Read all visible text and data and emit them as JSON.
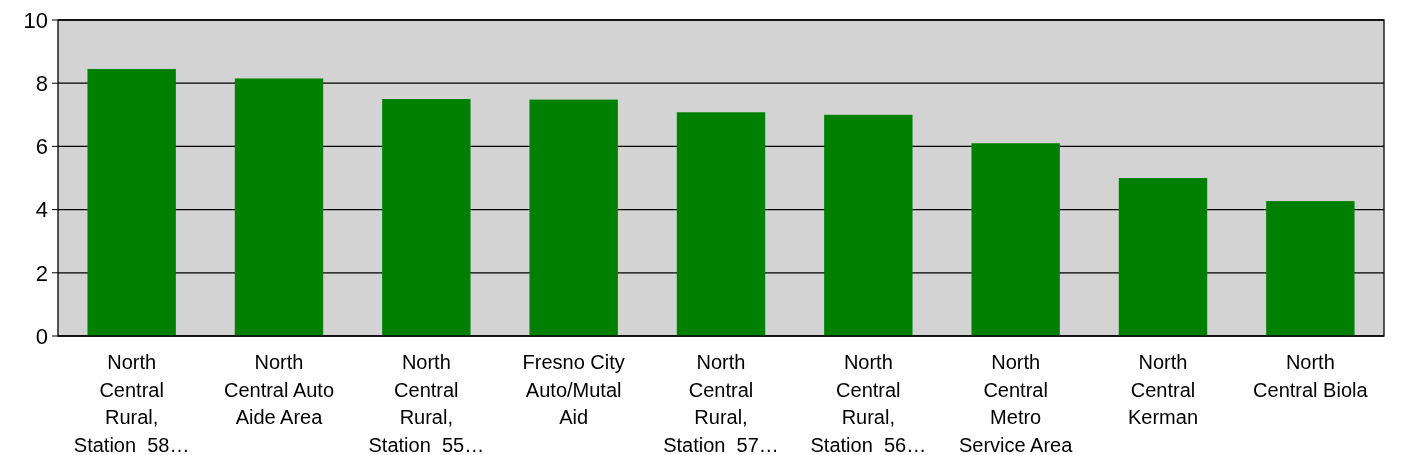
{
  "chart_data": {
    "type": "bar",
    "categories": [
      "North\nCentral\nRural,\nStation  58…",
      "North\nCentral Auto\nAide Area",
      "North\nCentral\nRural,\nStation  55…",
      "Fresno City\nAuto/Mutal\nAid",
      "North\nCentral\nRural,\nStation  57…",
      "North\nCentral\nRural,\nStation  56…",
      "North\nCentral\nMetro\nService Area",
      "North\nCentral\nKerman",
      "North\nCentral Biola"
    ],
    "values": [
      8.45,
      8.15,
      7.5,
      7.48,
      7.08,
      7.0,
      6.1,
      5.0,
      4.27
    ],
    "color": "#008000",
    "ylim": [
      0,
      10
    ],
    "yticks": [
      0,
      2,
      4,
      6,
      8,
      10
    ],
    "grid": "y"
  }
}
